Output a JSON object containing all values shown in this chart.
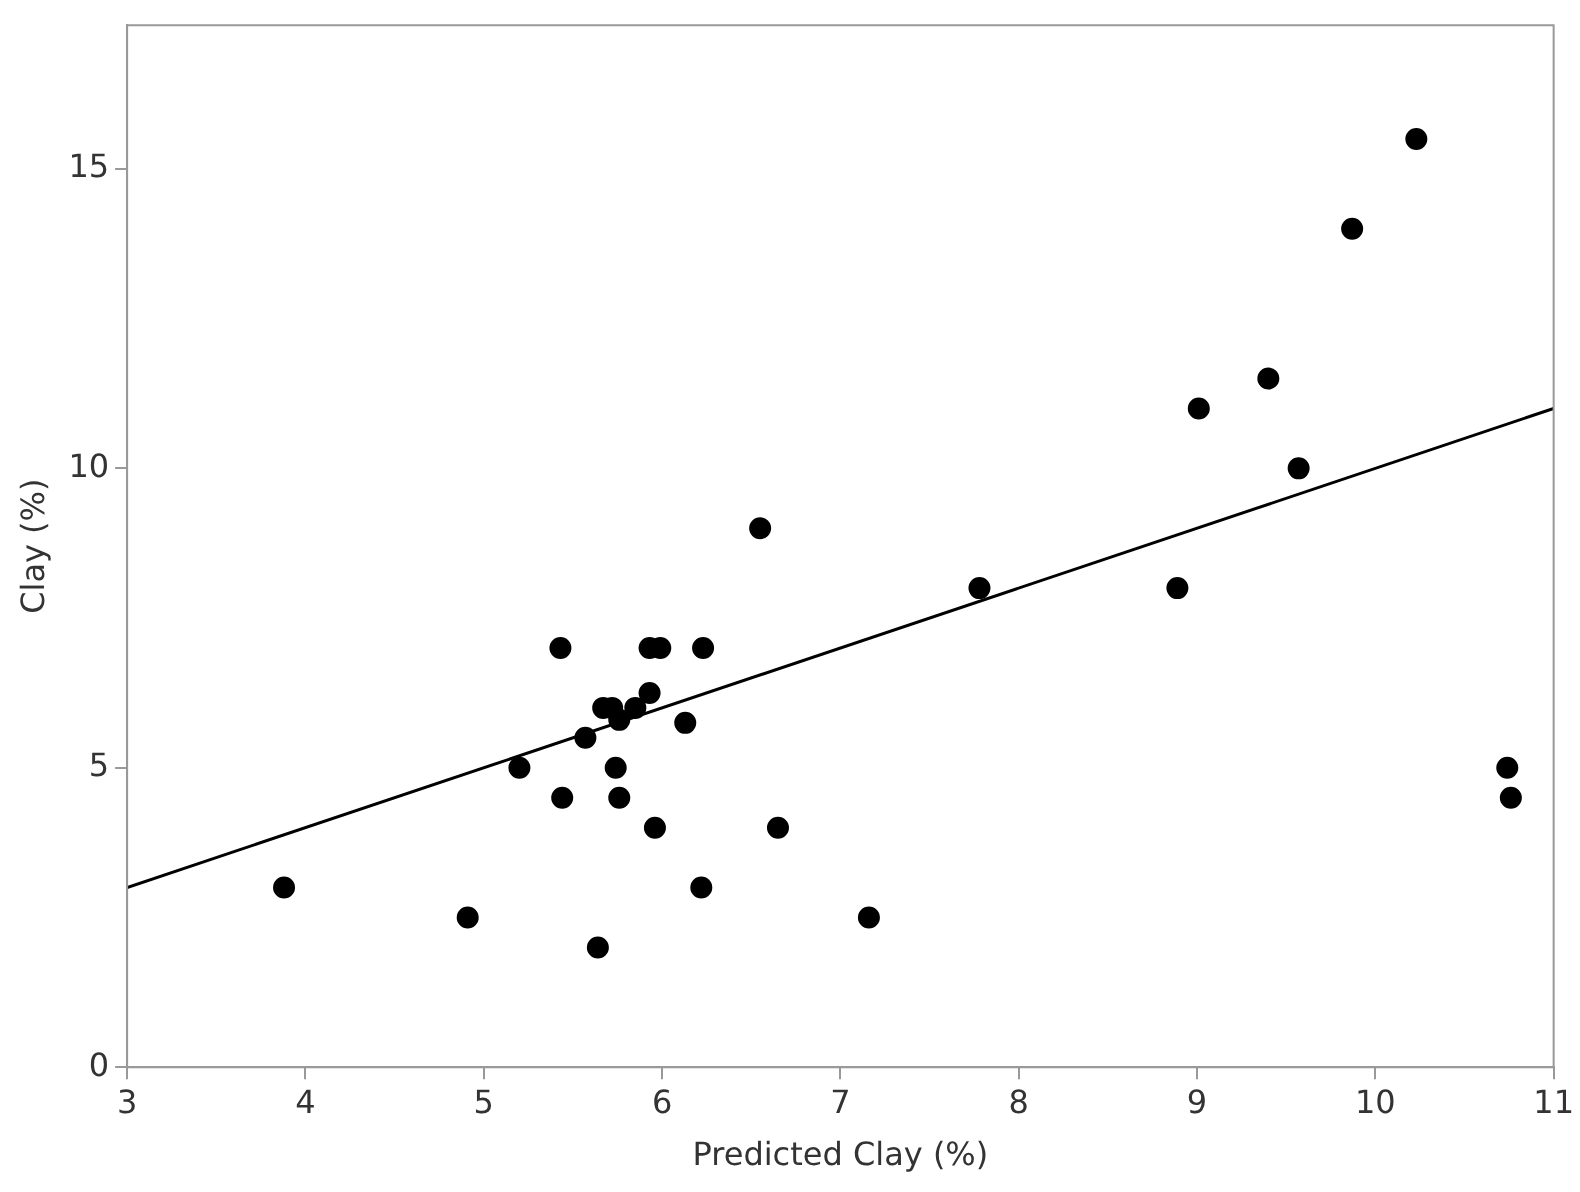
{
  "chart_data": {
    "type": "scatter",
    "xlabel": "Predicted Clay (%)",
    "ylabel": "Clay (%)",
    "xlim": [
      3,
      11
    ],
    "ylim": [
      0,
      17.4
    ],
    "xticks": [
      3,
      4,
      5,
      6,
      7,
      8,
      9,
      10,
      11
    ],
    "yticks": [
      0,
      5,
      10,
      15
    ],
    "grid": false,
    "legend": false,
    "marker": "circle",
    "series": [
      {
        "color": "#000000",
        "x": [
          3.88,
          4.91,
          5.2,
          5.43,
          5.44,
          5.57,
          5.64,
          5.67,
          5.72,
          5.76,
          5.74,
          5.76,
          5.85,
          5.93,
          5.93,
          5.99,
          5.96,
          6.13,
          6.22,
          6.23,
          6.55,
          6.65,
          7.16,
          7.78,
          8.89,
          9.01,
          9.4,
          9.57,
          9.87,
          10.23,
          10.74,
          10.76
        ],
        "values": [
          3,
          2.5,
          5,
          7,
          4.5,
          5.5,
          2,
          6,
          6,
          5.8,
          5,
          4.5,
          6,
          6.25,
          7,
          7,
          4,
          5.75,
          3,
          7,
          9,
          4,
          2.5,
          8,
          8,
          11,
          11.5,
          10,
          14,
          15.5,
          5,
          4.5
        ]
      },
      {
        "type": "line",
        "color": "#000000",
        "line_style": "solid",
        "marker": "none",
        "x": [
          3,
          11
        ],
        "values": [
          3,
          11
        ]
      }
    ]
  }
}
